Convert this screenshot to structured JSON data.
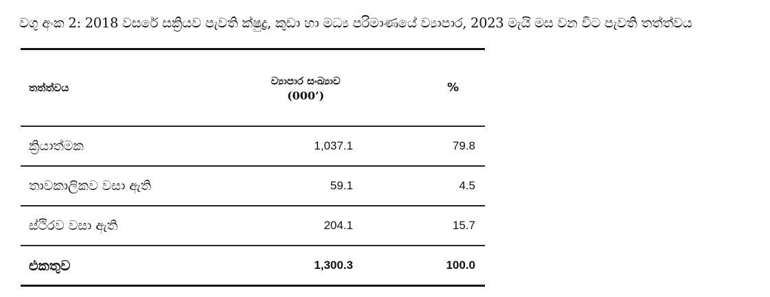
{
  "caption": "වගු අංක 2: 2018 වසරේ සක්‍රියව පැවති ක්ෂුද්‍ර, කුඩා හා මධ්‍ය පරිමාණයේ ව්‍යාපාර, 2023 මැයි මස වන විට පැවති තත්ත්වය",
  "table": {
    "headers": {
      "status": "තත්ත්වය",
      "count": "ව්‍යාපාර සංඛ්‍යාව",
      "count_unit": "(000’)",
      "percent": "%"
    },
    "rows": [
      {
        "status": "ක්‍රියාත්මක",
        "count": "1,037.1",
        "percent": "79.8"
      },
      {
        "status": "තාවකාලිකව වසා ඇති",
        "count": "59.1",
        "percent": "4.5"
      },
      {
        "status": "ස්ථිරව වසා ඇති",
        "count": "204.1",
        "percent": "15.7"
      }
    ],
    "total": {
      "status": "එකතුව",
      "count": "1,300.3",
      "percent": "100.0"
    }
  }
}
